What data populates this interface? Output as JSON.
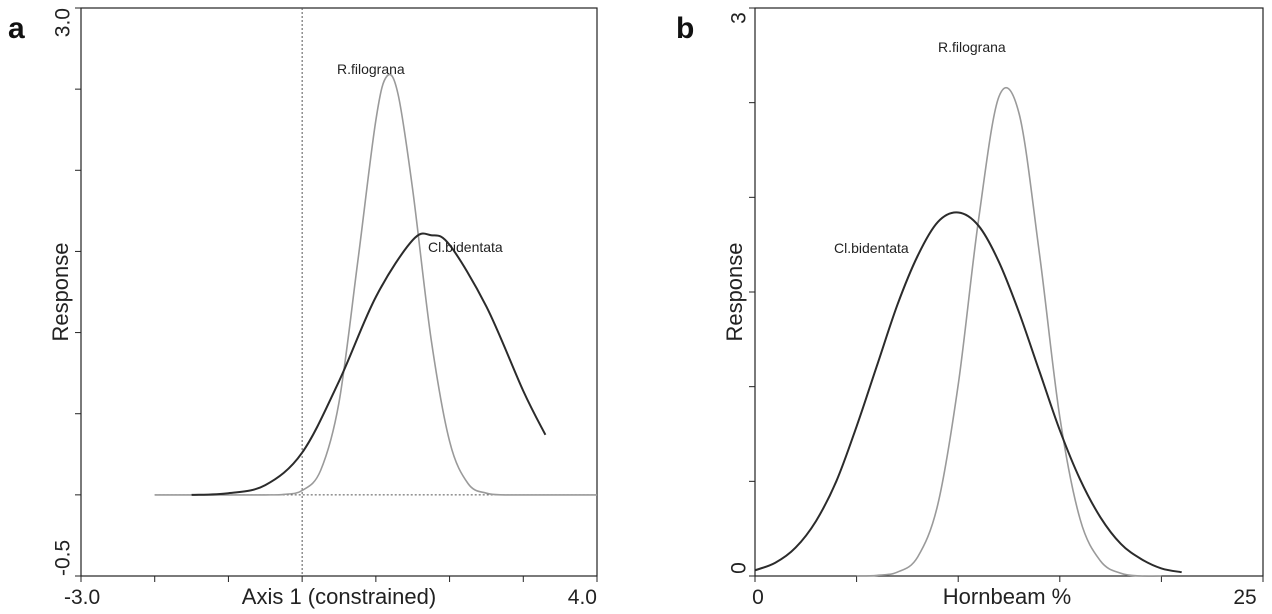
{
  "chart_data": [
    {
      "panel": "a",
      "type": "line",
      "xlabel": "Axis 1 (constrained)",
      "ylabel": "Response",
      "xlim": [
        -3.0,
        4.0
      ],
      "ylim": [
        -0.5,
        3.0
      ],
      "x_tick_labels": [
        "-3.0",
        "4.0"
      ],
      "y_tick_labels": [
        "-0.5",
        "3.0"
      ],
      "reference_lines": {
        "x": 0,
        "y": 0,
        "style": "dotted"
      },
      "series": [
        {
          "name": "R.filograna",
          "color": "#9a9a9a",
          "x": [
            -2.0,
            -1.5,
            -1.0,
            -0.5,
            -0.25,
            0.0,
            0.25,
            0.5,
            0.75,
            1.0,
            1.15,
            1.3,
            1.5,
            1.75,
            2.0,
            2.25,
            2.5,
            2.75,
            3.0,
            3.5,
            4.0
          ],
          "y": [
            0.0,
            0.0,
            0.0,
            0.0,
            0.003,
            0.027,
            0.15,
            0.57,
            1.42,
            2.31,
            2.58,
            2.47,
            1.88,
            0.96,
            0.33,
            0.07,
            0.01,
            0.0,
            0.0,
            0.0,
            0.0
          ]
        },
        {
          "name": "Cl.bidentata",
          "color": "#2b2b2b",
          "x": [
            -1.5,
            -1.0,
            -0.5,
            0.0,
            0.5,
            1.0,
            1.5,
            1.75,
            2.0,
            2.5,
            3.0,
            3.3
          ],
          "y": [
            0.0,
            0.01,
            0.06,
            0.26,
            0.7,
            1.22,
            1.57,
            1.6,
            1.54,
            1.16,
            0.64,
            0.37
          ]
        }
      ]
    },
    {
      "panel": "b",
      "type": "line",
      "xlabel": "Hornbeam %",
      "ylabel": "Response",
      "xlim": [
        0,
        25
      ],
      "ylim": [
        0,
        3
      ],
      "x_tick_labels": [
        "0",
        "25"
      ],
      "y_tick_labels": [
        "0",
        "3"
      ],
      "series": [
        {
          "name": "R.filograna",
          "color": "#9a9a9a",
          "x": [
            5,
            6,
            7,
            8,
            9,
            10,
            11,
            12,
            13,
            14,
            15,
            16,
            17,
            18,
            19,
            20
          ],
          "y": [
            0.0,
            0.003,
            0.02,
            0.1,
            0.38,
            1.01,
            1.88,
            2.53,
            2.44,
            1.7,
            0.84,
            0.3,
            0.08,
            0.014,
            0.0,
            0.0
          ]
        },
        {
          "name": "Cl.bidentata",
          "color": "#2b2b2b",
          "x": [
            0,
            1,
            2,
            3,
            4,
            5,
            6,
            7,
            8,
            9,
            10,
            11,
            12,
            13,
            14,
            15,
            16,
            17,
            18,
            19,
            20,
            21
          ],
          "y": [
            0.03,
            0.07,
            0.15,
            0.29,
            0.5,
            0.79,
            1.11,
            1.43,
            1.69,
            1.87,
            1.92,
            1.85,
            1.66,
            1.39,
            1.08,
            0.77,
            0.51,
            0.31,
            0.17,
            0.09,
            0.04,
            0.02
          ]
        }
      ]
    }
  ]
}
